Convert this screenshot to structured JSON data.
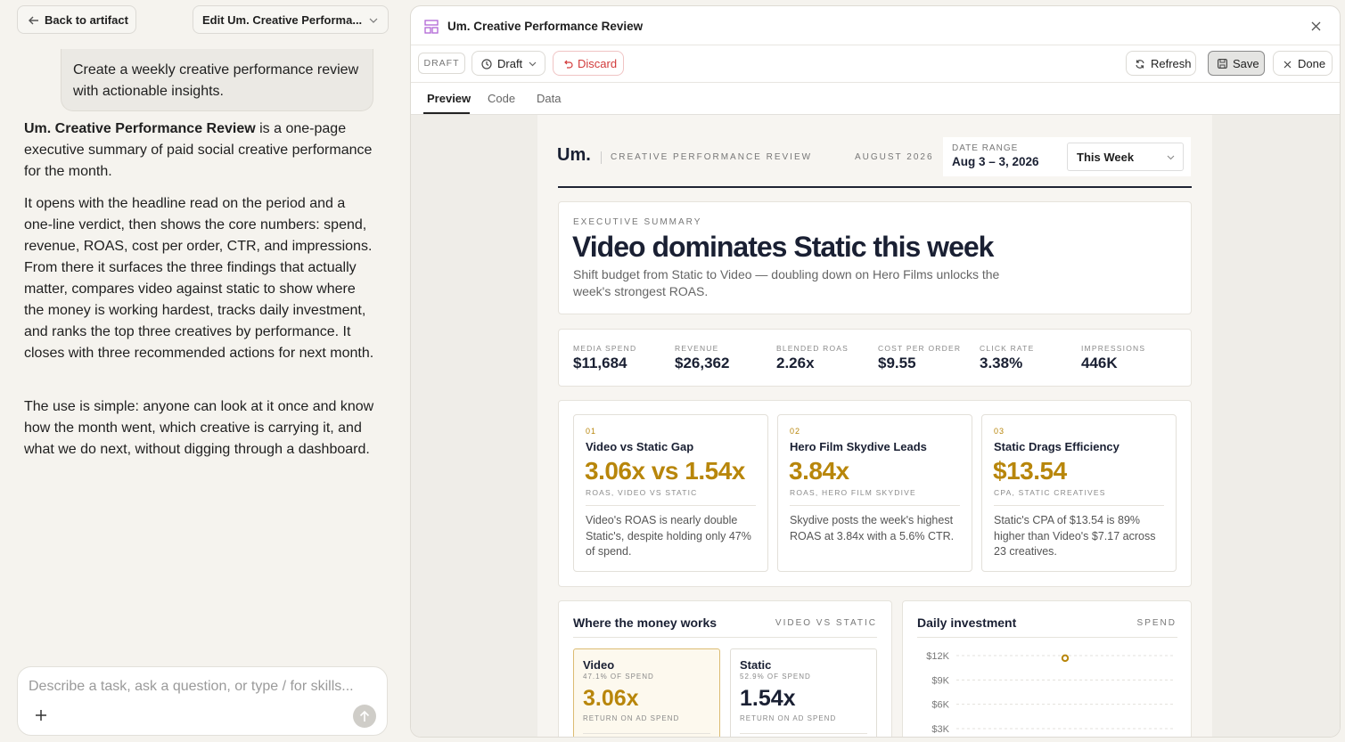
{
  "sidebar": {
    "back": "Back to artifact",
    "edit_menu": "Edit Um. Creative Performa...",
    "user_message": "Create a weekly creative performance review with actionable insights.",
    "response": {
      "p1_bold": "Um. Creative Performance Review",
      "p1_rest": "is a one-page executive summary of paid social creative performance for the month.",
      "p2": "It opens with the headline read on the period and a one-line verdict, then shows the core numbers: spend, revenue, ROAS, cost per order, CTR, and impressions. From there it surfaces the three findings that actually matter, compares video against static to show where the money is working hardest, tracks daily investment, and ranks the top three creatives by performance. It closes with three recommended actions for next month.",
      "p3": "The use is simple: anyone can look at it once and know how the month went, which creative is carrying it, and what we do next, without digging through a dashboard."
    },
    "composer_placeholder": "Describe a task, ask a question, or type / for skills..."
  },
  "artifact": {
    "title": "Um. Creative Performance Review",
    "toolbar": {
      "status": "DRAFT",
      "version": "Draft",
      "discard": "Discard",
      "refresh": "Refresh",
      "save": "Save",
      "done": "Done"
    },
    "tabs": [
      "Preview",
      "Code",
      "Data"
    ]
  },
  "report": {
    "brand": "Um.",
    "kicker": "CREATIVE PERFORMANCE REVIEW",
    "period": "AUGUST 2026",
    "date_range_label": "DATE RANGE",
    "date_range": "Aug 3 – 3, 2026",
    "range_select": "This Week",
    "summary": {
      "label": "EXECUTIVE SUMMARY",
      "headline": "Video dominates Static this week",
      "subline": "Shift budget from Static to Video — doubling down on Hero Films unlocks the week's strongest ROAS."
    },
    "kpis": [
      {
        "label": "MEDIA SPEND",
        "value": "$11,684"
      },
      {
        "label": "REVENUE",
        "value": "$26,362"
      },
      {
        "label": "BLENDED ROAS",
        "value": "2.26x"
      },
      {
        "label": "COST PER ORDER",
        "value": "$9.55"
      },
      {
        "label": "CLICK RATE",
        "value": "3.38%"
      },
      {
        "label": "IMPRESSIONS",
        "value": "446K"
      }
    ],
    "findings": [
      {
        "num": "01",
        "title": "Video vs Static Gap",
        "value": "3.06x vs 1.54x",
        "caption": "ROAS, VIDEO VS STATIC",
        "body": "Video's ROAS is nearly double Static's, despite holding only 47% of spend."
      },
      {
        "num": "02",
        "title": "Hero Film Skydive Leads",
        "value": "3.84x",
        "caption": "ROAS, HERO FILM SKYDIVE",
        "body": "Skydive posts the week's highest ROAS at 3.84x with a 5.6% CTR."
      },
      {
        "num": "03",
        "title": "Static Drags Efficiency",
        "value": "$13.54",
        "caption": "CPA, STATIC CREATIVES",
        "body": "Static's CPA of $13.54 is 89% higher than Video's $7.17 across 23 creatives."
      }
    ],
    "money": {
      "title": "Where the money works",
      "tag": "VIDEO VS STATIC",
      "cards": [
        {
          "name": "Video",
          "share": "47.1% OF SPEND",
          "roas": "3.06x",
          "roas_label": "RETURN ON AD SPEND"
        },
        {
          "name": "Static",
          "share": "52.9% OF SPEND",
          "roas": "1.54x",
          "roas_label": "RETURN ON AD SPEND"
        }
      ]
    },
    "daily_investment": {
      "title": "Daily investment",
      "tag": "SPEND",
      "yticks": [
        {
          "value": 12000,
          "label": "$12K"
        },
        {
          "value": 9000,
          "label": "$9K"
        },
        {
          "value": 6000,
          "label": "$6K"
        },
        {
          "value": 3000,
          "label": "$3K"
        }
      ],
      "values": [
        11684
      ]
    }
  }
}
